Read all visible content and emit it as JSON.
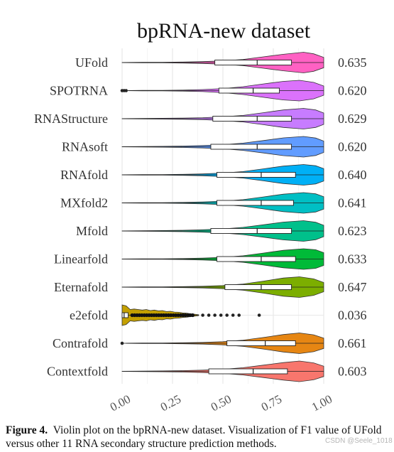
{
  "chart_data": {
    "type": "violin",
    "title": "bpRNA-new dataset",
    "xlabel": "",
    "ylabel": "",
    "xlim": [
      0,
      1
    ],
    "x_ticks": [
      "0.00",
      "0.25",
      "0.50",
      "0.75",
      "1.00"
    ],
    "x_tick_values": [
      0,
      0.25,
      0.5,
      0.75,
      1
    ],
    "grid": true,
    "series": [
      {
        "method": "UFold",
        "mean_label": "0.635",
        "color": "#ff61c3",
        "q1": 0.46,
        "median": 0.67,
        "q3": 0.84,
        "min": 0.0,
        "max": 1.0,
        "outliers": [],
        "density": [
          [
            0,
            0.01
          ],
          [
            0.1,
            0.02
          ],
          [
            0.2,
            0.03
          ],
          [
            0.3,
            0.05
          ],
          [
            0.4,
            0.09
          ],
          [
            0.5,
            0.16
          ],
          [
            0.6,
            0.3
          ],
          [
            0.7,
            0.55
          ],
          [
            0.8,
            0.8
          ],
          [
            0.9,
            1.0
          ],
          [
            0.95,
            0.85
          ],
          [
            1.0,
            0.5
          ]
        ]
      },
      {
        "method": "SPOTRNA",
        "mean_label": "0.620",
        "color": "#db72fb",
        "q1": 0.48,
        "median": 0.65,
        "q3": 0.78,
        "min": 0.03,
        "max": 1.0,
        "outliers": [
          0.0,
          0.01,
          0.02
        ],
        "density": [
          [
            0.03,
            0.01
          ],
          [
            0.1,
            0.02
          ],
          [
            0.2,
            0.03
          ],
          [
            0.3,
            0.05
          ],
          [
            0.4,
            0.1
          ],
          [
            0.5,
            0.2
          ],
          [
            0.6,
            0.38
          ],
          [
            0.7,
            0.65
          ],
          [
            0.8,
            0.9
          ],
          [
            0.88,
            1.0
          ],
          [
            0.95,
            0.8
          ],
          [
            1.0,
            0.45
          ]
        ]
      },
      {
        "method": "RNAStructure",
        "mean_label": "0.629",
        "color": "#c77cff",
        "q1": 0.45,
        "median": 0.67,
        "q3": 0.84,
        "min": 0.0,
        "max": 1.0,
        "outliers": [],
        "density": [
          [
            0,
            0.01
          ],
          [
            0.1,
            0.02
          ],
          [
            0.2,
            0.04
          ],
          [
            0.3,
            0.06
          ],
          [
            0.4,
            0.1
          ],
          [
            0.5,
            0.18
          ],
          [
            0.6,
            0.32
          ],
          [
            0.7,
            0.58
          ],
          [
            0.8,
            0.85
          ],
          [
            0.9,
            1.0
          ],
          [
            0.96,
            0.85
          ],
          [
            1.0,
            0.55
          ]
        ]
      },
      {
        "method": "RNAsoft",
        "mean_label": "0.620",
        "color": "#619cff",
        "q1": 0.44,
        "median": 0.67,
        "q3": 0.84,
        "min": 0.0,
        "max": 1.0,
        "outliers": [],
        "density": [
          [
            0,
            0.01
          ],
          [
            0.1,
            0.02
          ],
          [
            0.2,
            0.04
          ],
          [
            0.3,
            0.07
          ],
          [
            0.4,
            0.12
          ],
          [
            0.5,
            0.2
          ],
          [
            0.6,
            0.35
          ],
          [
            0.7,
            0.6
          ],
          [
            0.8,
            0.86
          ],
          [
            0.9,
            1.0
          ],
          [
            0.96,
            0.85
          ],
          [
            1.0,
            0.55
          ]
        ]
      },
      {
        "method": "RNAfold",
        "mean_label": "0.640",
        "color": "#00b0f6",
        "q1": 0.47,
        "median": 0.69,
        "q3": 0.86,
        "min": 0.0,
        "max": 1.0,
        "outliers": [],
        "density": [
          [
            0,
            0.01
          ],
          [
            0.1,
            0.02
          ],
          [
            0.2,
            0.03
          ],
          [
            0.3,
            0.05
          ],
          [
            0.4,
            0.09
          ],
          [
            0.5,
            0.17
          ],
          [
            0.6,
            0.32
          ],
          [
            0.7,
            0.58
          ],
          [
            0.8,
            0.85
          ],
          [
            0.9,
            1.0
          ],
          [
            0.96,
            0.88
          ],
          [
            1.0,
            0.6
          ]
        ]
      },
      {
        "method": "MXfold2",
        "mean_label": "0.641",
        "color": "#00bfc4",
        "q1": 0.47,
        "median": 0.69,
        "q3": 0.85,
        "min": 0.0,
        "max": 1.0,
        "outliers": [],
        "density": [
          [
            0,
            0.01
          ],
          [
            0.1,
            0.02
          ],
          [
            0.2,
            0.03
          ],
          [
            0.3,
            0.05
          ],
          [
            0.4,
            0.09
          ],
          [
            0.5,
            0.17
          ],
          [
            0.6,
            0.32
          ],
          [
            0.7,
            0.58
          ],
          [
            0.8,
            0.85
          ],
          [
            0.9,
            1.0
          ],
          [
            0.96,
            0.88
          ],
          [
            1.0,
            0.6
          ]
        ]
      },
      {
        "method": "Mfold",
        "mean_label": "0.623",
        "color": "#00c08b",
        "q1": 0.44,
        "median": 0.67,
        "q3": 0.84,
        "min": 0.0,
        "max": 1.0,
        "outliers": [],
        "density": [
          [
            0,
            0.01
          ],
          [
            0.1,
            0.02
          ],
          [
            0.2,
            0.04
          ],
          [
            0.3,
            0.07
          ],
          [
            0.4,
            0.12
          ],
          [
            0.5,
            0.2
          ],
          [
            0.6,
            0.35
          ],
          [
            0.7,
            0.6
          ],
          [
            0.8,
            0.86
          ],
          [
            0.9,
            1.0
          ],
          [
            0.96,
            0.85
          ],
          [
            1.0,
            0.55
          ]
        ]
      },
      {
        "method": "Linearfold",
        "mean_label": "0.633",
        "color": "#00ba38",
        "q1": 0.47,
        "median": 0.69,
        "q3": 0.86,
        "min": 0.0,
        "max": 1.0,
        "outliers": [],
        "density": [
          [
            0,
            0.01
          ],
          [
            0.1,
            0.02
          ],
          [
            0.2,
            0.03
          ],
          [
            0.3,
            0.05
          ],
          [
            0.4,
            0.09
          ],
          [
            0.5,
            0.17
          ],
          [
            0.6,
            0.32
          ],
          [
            0.7,
            0.58
          ],
          [
            0.8,
            0.85
          ],
          [
            0.9,
            1.0
          ],
          [
            0.96,
            0.9
          ],
          [
            1.0,
            0.62
          ]
        ]
      },
      {
        "method": "Eternafold",
        "mean_label": "0.647",
        "color": "#7cae00",
        "q1": 0.51,
        "median": 0.69,
        "q3": 0.84,
        "min": 0.0,
        "max": 1.0,
        "outliers": [],
        "density": [
          [
            0,
            0.01
          ],
          [
            0.1,
            0.02
          ],
          [
            0.2,
            0.03
          ],
          [
            0.3,
            0.05
          ],
          [
            0.4,
            0.08
          ],
          [
            0.5,
            0.15
          ],
          [
            0.6,
            0.3
          ],
          [
            0.7,
            0.58
          ],
          [
            0.8,
            0.88
          ],
          [
            0.88,
            1.0
          ],
          [
            0.95,
            0.8
          ],
          [
            1.0,
            0.45
          ]
        ]
      },
      {
        "method": "e2efold",
        "mean_label": "0.036",
        "color": "#c4a000",
        "q1": 0.0,
        "median": 0.01,
        "q3": 0.03,
        "min": 0.0,
        "max": 0.38,
        "outliers": [
          0.4,
          0.43,
          0.46,
          0.49,
          0.52,
          0.55,
          0.58,
          0.68
        ],
        "density": [
          [
            0,
            1.0
          ],
          [
            0.02,
            0.9
          ],
          [
            0.04,
            0.55
          ],
          [
            0.06,
            0.6
          ],
          [
            0.08,
            0.55
          ],
          [
            0.1,
            0.5
          ],
          [
            0.12,
            0.55
          ],
          [
            0.14,
            0.45
          ],
          [
            0.16,
            0.5
          ],
          [
            0.18,
            0.42
          ],
          [
            0.2,
            0.45
          ],
          [
            0.22,
            0.35
          ],
          [
            0.24,
            0.38
          ],
          [
            0.26,
            0.3
          ],
          [
            0.28,
            0.28
          ],
          [
            0.3,
            0.22
          ],
          [
            0.32,
            0.2
          ],
          [
            0.34,
            0.14
          ],
          [
            0.36,
            0.1
          ],
          [
            0.38,
            0.05
          ]
        ]
      },
      {
        "method": "Contrafold",
        "mean_label": "0.661",
        "color": "#e68613",
        "q1": 0.52,
        "median": 0.71,
        "q3": 0.86,
        "min": 0.0,
        "max": 1.0,
        "outliers": [
          0.0
        ],
        "density": [
          [
            0.02,
            0.01
          ],
          [
            0.1,
            0.02
          ],
          [
            0.2,
            0.03
          ],
          [
            0.3,
            0.05
          ],
          [
            0.4,
            0.08
          ],
          [
            0.5,
            0.15
          ],
          [
            0.6,
            0.3
          ],
          [
            0.7,
            0.56
          ],
          [
            0.8,
            0.85
          ],
          [
            0.88,
            1.0
          ],
          [
            0.95,
            0.82
          ],
          [
            1.0,
            0.5
          ]
        ]
      },
      {
        "method": "Contextfold",
        "mean_label": "0.603",
        "color": "#f8766d",
        "q1": 0.43,
        "median": 0.65,
        "q3": 0.82,
        "min": 0.0,
        "max": 1.0,
        "outliers": [],
        "density": [
          [
            0,
            0.01
          ],
          [
            0.1,
            0.02
          ],
          [
            0.2,
            0.04
          ],
          [
            0.3,
            0.07
          ],
          [
            0.4,
            0.12
          ],
          [
            0.5,
            0.2
          ],
          [
            0.6,
            0.35
          ],
          [
            0.7,
            0.6
          ],
          [
            0.8,
            0.85
          ],
          [
            0.88,
            1.0
          ],
          [
            0.95,
            0.82
          ],
          [
            1.0,
            0.5
          ]
        ]
      }
    ]
  },
  "caption": {
    "label": "Figure 4.",
    "text": "Violin plot on the bpRNA-new dataset. Visualization of F1 value of UFold versus other 11 RNA secondary structure prediction methods."
  },
  "watermark": "CSDN @Seele_1018"
}
